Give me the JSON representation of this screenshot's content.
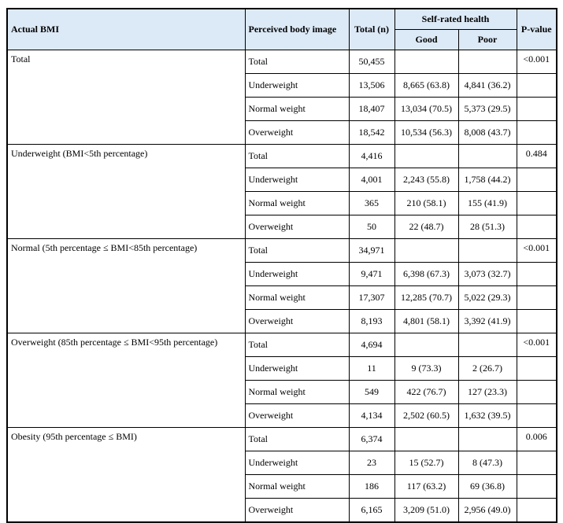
{
  "header": {
    "actual_bmi": "Actual BMI",
    "perceived": "Perceived body image",
    "total": "Total (n)",
    "self_rated": "Self-rated health",
    "good": "Good",
    "poor": "Poor",
    "p_value": "P-value"
  },
  "groups": [
    {
      "label": "Total",
      "p_value": "<0.001",
      "rows": [
        {
          "perceived": "Total",
          "total": "50,455"
        },
        {
          "perceived": "Underweight",
          "total": "13,506",
          "good": "8,665 (63.8)",
          "poor": "4,841 (36.2)"
        },
        {
          "perceived": "Normal weight",
          "total": "18,407",
          "good": "13,034 (70.5)",
          "poor": "5,373 (29.5)"
        },
        {
          "perceived": "Overweight",
          "total": "18,542",
          "good": "10,534 (56.3)",
          "poor": "8,008 (43.7)"
        }
      ]
    },
    {
      "label": "Underweight (BMI<5th percentage)",
      "p_value": "0.484",
      "rows": [
        {
          "perceived": "Total",
          "total": "4,416"
        },
        {
          "perceived": "Underweight",
          "total": "4,001",
          "good": "2,243 (55.8)",
          "poor": "1,758 (44.2)"
        },
        {
          "perceived": "Normal weight",
          "total": "365",
          "good": "210 (58.1)",
          "poor": "155 (41.9)"
        },
        {
          "perceived": "Overweight",
          "total": "50",
          "good": "22 (48.7)",
          "poor": "28 (51.3)"
        }
      ]
    },
    {
      "label": "Normal (5th percentage ≤ BMI<85th percentage)",
      "p_value": "<0.001",
      "rows": [
        {
          "perceived": "Total",
          "total": "34,971"
        },
        {
          "perceived": "Underweight",
          "total": "9,471",
          "good": "6,398 (67.3)",
          "poor": "3,073 (32.7)"
        },
        {
          "perceived": "Normal weight",
          "total": "17,307",
          "good": "12,285 (70.7)",
          "poor": "5,022 (29.3)"
        },
        {
          "perceived": "Overweight",
          "total": "8,193",
          "good": "4,801 (58.1)",
          "poor": "3,392 (41.9)"
        }
      ]
    },
    {
      "label": "Overweight (85th percentage ≤ BMI<95th percentage)",
      "p_value": "<0.001",
      "rows": [
        {
          "perceived": "Total",
          "total": "4,694"
        },
        {
          "perceived": "Underweight",
          "total": "11",
          "good": "9 (73.3)",
          "poor": "2 (26.7)"
        },
        {
          "perceived": "Normal weight",
          "total": "549",
          "good": "422 (76.7)",
          "poor": "127 (23.3)"
        },
        {
          "perceived": "Overweight",
          "total": "4,134",
          "good": "2,502 (60.5)",
          "poor": "1,632 (39.5)"
        }
      ]
    },
    {
      "label": "Obesity (95th percentage ≤ BMI)",
      "p_value": "0.006",
      "rows": [
        {
          "perceived": "Total",
          "total": "6,374"
        },
        {
          "perceived": "Underweight",
          "total": "23",
          "good": "15 (52.7)",
          "poor": "8 (47.3)"
        },
        {
          "perceived": "Normal weight",
          "total": "186",
          "good": "117 (63.2)",
          "poor": "69 (36.8)"
        },
        {
          "perceived": "Overweight",
          "total": "6,165",
          "good": "3,209 (51.0)",
          "poor": "2,956 (49.0)"
        }
      ]
    }
  ]
}
